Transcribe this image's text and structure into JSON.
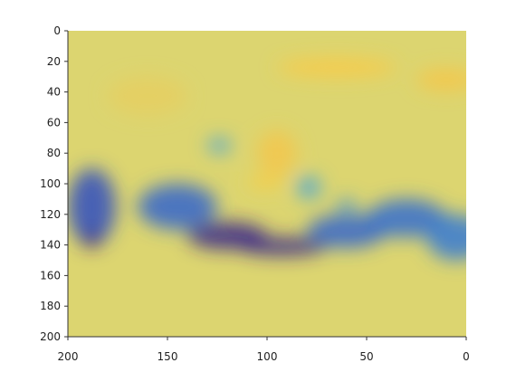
{
  "chart_data": {
    "type": "heatmap",
    "title": "",
    "xlabel": "",
    "ylabel": "",
    "xlim": [
      200,
      0
    ],
    "ylim": [
      200,
      0
    ],
    "x_reversed": true,
    "y_reversed": true,
    "xticks": [
      200,
      150,
      100,
      50,
      0
    ],
    "yticks": [
      0,
      20,
      40,
      60,
      80,
      100,
      120,
      140,
      160,
      180,
      200
    ],
    "grid": false,
    "colormap": [
      "#3b0f70",
      "#2f55c8",
      "#3f9fe0",
      "#9fd19a",
      "#d6d97a",
      "#f6c54a",
      "#ffd23a"
    ],
    "color_range": [
      0,
      1
    ],
    "blobs": [
      {
        "x": 200,
        "y": 90,
        "w": 24,
        "h": 50,
        "v": 0.15
      },
      {
        "x": 165,
        "y": 100,
        "w": 40,
        "h": 30,
        "v": 0.2
      },
      {
        "x": 140,
        "y": 125,
        "w": 40,
        "h": 18,
        "v": 0.05
      },
      {
        "x": 115,
        "y": 135,
        "w": 45,
        "h": 12,
        "v": 0.05
      },
      {
        "x": 192,
        "y": 132,
        "w": 8,
        "h": 10,
        "v": -0.3
      },
      {
        "x": 80,
        "y": 120,
        "w": 40,
        "h": 22,
        "v": 0.2
      },
      {
        "x": 50,
        "y": 110,
        "w": 40,
        "h": 25,
        "v": 0.22
      },
      {
        "x": 20,
        "y": 120,
        "w": 30,
        "h": 30,
        "v": 0.25
      },
      {
        "x": 130,
        "y": 70,
        "w": 12,
        "h": 10,
        "v": 0.35
      },
      {
        "x": 85,
        "y": 95,
        "w": 12,
        "h": 15,
        "v": 0.35
      },
      {
        "x": 65,
        "y": 110,
        "w": 10,
        "h": 8,
        "v": 0.3
      },
      {
        "x": 110,
        "y": 95,
        "w": 18,
        "h": 8,
        "v": 0.95
      },
      {
        "x": 95,
        "y": 18,
        "w": 60,
        "h": 12,
        "v": 0.9
      },
      {
        "x": 25,
        "y": 25,
        "w": 30,
        "h": 14,
        "v": 0.85
      },
      {
        "x": 105,
        "y": 65,
        "w": 20,
        "h": 30,
        "v": 0.82
      },
      {
        "x": 180,
        "y": 30,
        "w": 40,
        "h": 25,
        "v": 0.75
      }
    ]
  }
}
